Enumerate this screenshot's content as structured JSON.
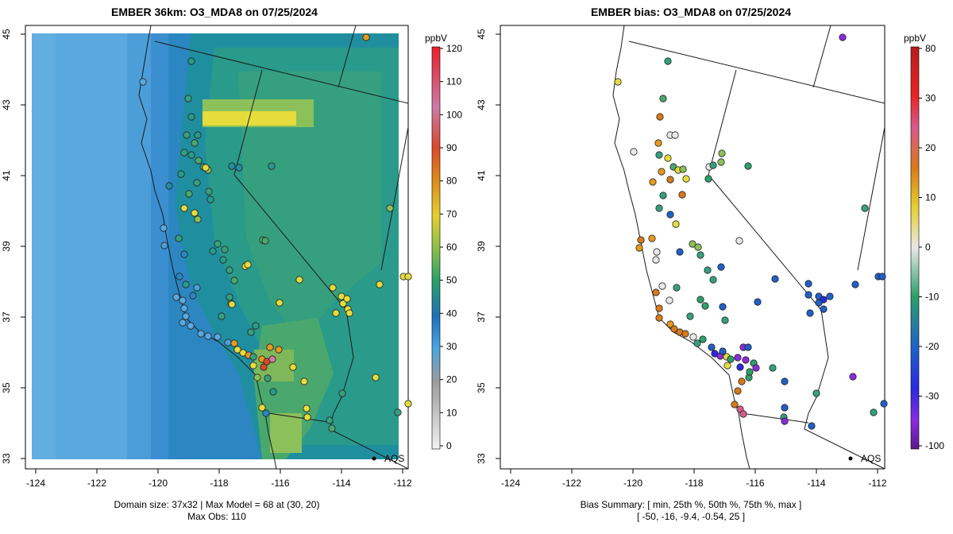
{
  "left_panel": {
    "title": "EMBER 36km: O3_MDA8 on 07/25/2024",
    "footer_lines": [
      "Domain size: 37x32 | Max Model = 68 at (30, 20)",
      "Max Obs: 110"
    ],
    "colorbar": {
      "units": "ppbV",
      "ticks": [
        "120",
        "110",
        "100",
        "90",
        "80",
        "70",
        "60",
        "50",
        "40",
        "30",
        "20",
        "10",
        "0"
      ]
    }
  },
  "right_panel": {
    "title": "EMBER bias: O3_MDA8 on 07/25/2024",
    "footer_lines": [
      "Bias Summary: [ min, 25th %, 50th %, 75th %, max ]",
      "[ -50,   -16,   -9.4,   -0.54,   25 ]"
    ],
    "colorbar": {
      "units": "ppbV",
      "ticks": [
        "80",
        "30",
        "20",
        "10",
        "0",
        "-10",
        "-20",
        "-30",
        "-100"
      ]
    }
  },
  "axes": {
    "x_ticks": [
      "-124",
      "-122",
      "-120",
      "-118",
      "-116",
      "-114",
      "-112"
    ],
    "y_ticks": [
      "33",
      "35",
      "37",
      "39",
      "41",
      "43",
      "45"
    ],
    "lon_range": [
      -124.2,
      -111.7
    ],
    "lat_range": [
      32.6,
      45.2
    ]
  },
  "map_labels": {
    "aqs_marker": "AQS"
  },
  "colors": {
    "ocean_model": "#5aa8de",
    "coast_model": "#3b8fd0",
    "inland_model": "#2a9a8a",
    "hotspot": "#e6dc3c"
  }
}
